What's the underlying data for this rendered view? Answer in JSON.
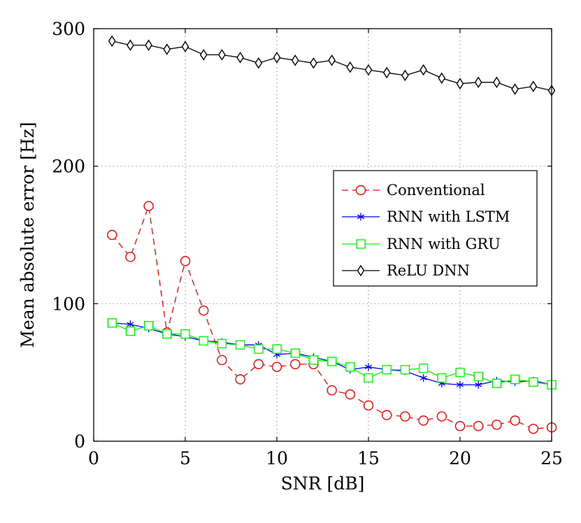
{
  "chart_data": {
    "type": "line",
    "xlabel": "SNR [dB]",
    "ylabel": "Mean absolute error [Hz]",
    "xlim": [
      0,
      25
    ],
    "ylim": [
      0,
      300
    ],
    "xticks": [
      0,
      5,
      10,
      15,
      20,
      25
    ],
    "yticks": [
      0,
      100,
      200,
      300
    ],
    "grid": true,
    "legend_position": "right-middle",
    "x": [
      1,
      2,
      3,
      4,
      5,
      6,
      7,
      8,
      9,
      10,
      11,
      12,
      13,
      14,
      15,
      16,
      17,
      18,
      19,
      20,
      21,
      22,
      23,
      24,
      25
    ],
    "series": [
      {
        "name": "Conventional",
        "color": "#ff0000",
        "line_style": "dashed",
        "marker": "circle",
        "values": [
          150,
          134,
          171,
          79,
          131,
          95,
          59,
          45,
          56,
          54,
          56,
          56,
          37,
          34,
          26,
          19,
          18,
          15,
          18,
          11,
          11,
          12,
          15,
          9,
          10
        ]
      },
      {
        "name": "RNN with LSTM",
        "color": "#0000ff",
        "line_style": "solid",
        "marker": "asterisk",
        "values": [
          86,
          85,
          82,
          78,
          76,
          73,
          72,
          70,
          70,
          63,
          64,
          61,
          58,
          52,
          54,
          52,
          51,
          46,
          42,
          41,
          41,
          44,
          43,
          44,
          41
        ]
      },
      {
        "name": "RNN with GRU",
        "color": "#00ff00",
        "line_style": "solid",
        "marker": "square",
        "values": [
          86,
          80,
          84,
          78,
          78,
          73,
          71,
          70,
          67,
          67,
          64,
          59,
          58,
          54,
          46,
          52,
          52,
          53,
          46,
          50,
          47,
          42,
          45,
          43,
          41
        ]
      },
      {
        "name": "ReLU DNN",
        "color": "#000000",
        "line_style": "solid",
        "marker": "diamond",
        "values": [
          291,
          288,
          288,
          285,
          287,
          281,
          281,
          279,
          275,
          279,
          277,
          275,
          277,
          272,
          270,
          268,
          266,
          270,
          264,
          260,
          261,
          261,
          256,
          258,
          255
        ]
      }
    ]
  }
}
